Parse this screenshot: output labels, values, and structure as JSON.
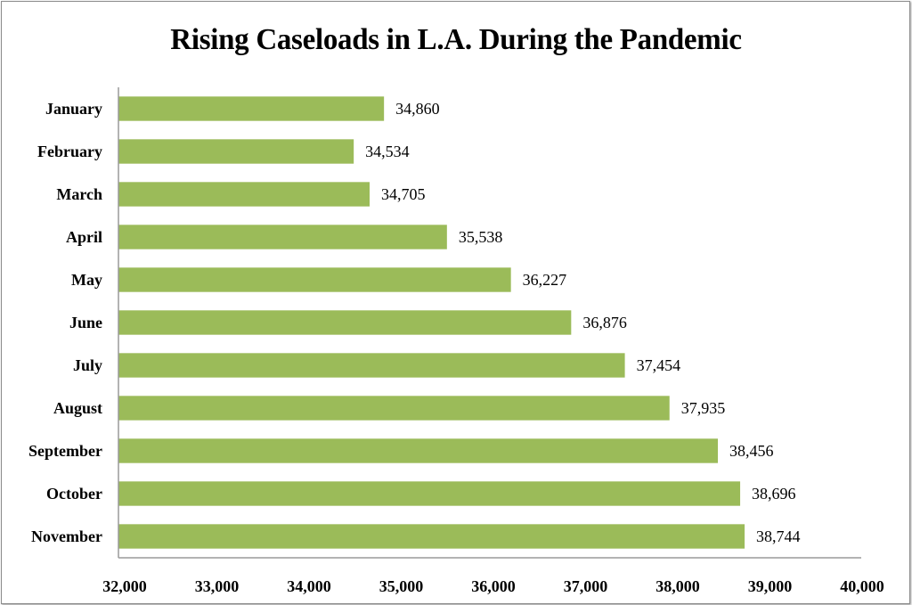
{
  "chart_data": {
    "type": "bar",
    "orientation": "horizontal",
    "title": "Rising Caseloads in L.A. During the Pandemic",
    "xlabel": "",
    "ylabel": "",
    "categories": [
      "January",
      "February",
      "March",
      "April",
      "May",
      "June",
      "July",
      "August",
      "September",
      "October",
      "November"
    ],
    "values": [
      34860,
      34534,
      34705,
      35538,
      36227,
      36876,
      37454,
      37935,
      38456,
      38696,
      38744
    ],
    "value_labels": [
      "34,860",
      "34,534",
      "34,705",
      "35,538",
      "36,227",
      "36,876",
      "37,454",
      "37,935",
      "38,456",
      "38,696",
      "38,744"
    ],
    "xlim": [
      32000,
      40000
    ],
    "x_ticks": [
      32000,
      33000,
      34000,
      35000,
      36000,
      37000,
      38000,
      39000,
      40000
    ],
    "x_tick_labels": [
      "32,000",
      "33,000",
      "34,000",
      "35,000",
      "36,000",
      "37,000",
      "38,000",
      "39,000",
      "40,000"
    ],
    "grid": false,
    "legend": "none",
    "bar_color": "#9bbb59"
  }
}
